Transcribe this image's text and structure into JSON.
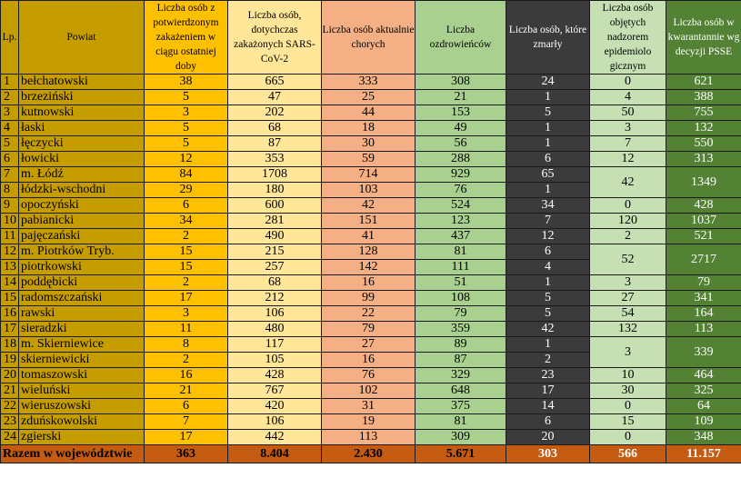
{
  "header": {
    "lp": "Lp.",
    "powiat": "Powiat",
    "new_cases": "Liczba osób z potwierdzonym zakażeniem w ciągu ostatniej doby",
    "total_infected": "Liczba osób, dotychczas zakażonych SARS-CoV-2",
    "currently_ill": "Liczba osób aktualnie chorych",
    "recovered": "Liczba ozdrowieńców",
    "deaths": "Liczba osób, które zmarły",
    "epi_supervision": "Liczba osób objętych nadzorem epidemiolo gicznym",
    "quarantine": "Liczba osób w kwarantannie wg decyzji PSSE"
  },
  "rows": [
    {
      "lp": "1",
      "name": "bełchatowski",
      "new": "38",
      "total": "665",
      "ill": "333",
      "rec": "308",
      "dead": "24",
      "epi": "0",
      "quar": "621"
    },
    {
      "lp": "2",
      "name": "brzeziński",
      "new": "5",
      "total": "47",
      "ill": "25",
      "rec": "21",
      "dead": "1",
      "epi": "4",
      "quar": "388"
    },
    {
      "lp": "3",
      "name": "kutnowski",
      "new": "3",
      "total": "202",
      "ill": "44",
      "rec": "153",
      "dead": "5",
      "epi": "50",
      "quar": "755"
    },
    {
      "lp": "4",
      "name": "łaski",
      "new": "5",
      "total": "68",
      "ill": "18",
      "rec": "49",
      "dead": "1",
      "epi": "3",
      "quar": "132"
    },
    {
      "lp": "5",
      "name": "łęczycki",
      "new": "5",
      "total": "87",
      "ill": "30",
      "rec": "56",
      "dead": "1",
      "epi": "7",
      "quar": "550"
    },
    {
      "lp": "6",
      "name": "łowicki",
      "new": "12",
      "total": "353",
      "ill": "59",
      "rec": "288",
      "dead": "6",
      "epi": "12",
      "quar": "313"
    },
    {
      "lp": "7",
      "name": "m. Łódź",
      "new": "84",
      "total": "1708",
      "ill": "714",
      "rec": "929",
      "dead": "65",
      "epi": "42",
      "quar": "1349"
    },
    {
      "lp": "8",
      "name": "łódzki-wschodni",
      "new": "29",
      "total": "180",
      "ill": "103",
      "rec": "76",
      "dead": "1"
    },
    {
      "lp": "9",
      "name": "opoczyński",
      "new": "6",
      "total": "600",
      "ill": "42",
      "rec": "524",
      "dead": "34",
      "epi": "0",
      "quar": "428"
    },
    {
      "lp": "10",
      "name": "pabianicki",
      "new": "34",
      "total": "281",
      "ill": "151",
      "rec": "123",
      "dead": "7",
      "epi": "120",
      "quar": "1037"
    },
    {
      "lp": "11",
      "name": "pajęczański",
      "new": "2",
      "total": "490",
      "ill": "41",
      "rec": "437",
      "dead": "12",
      "epi": "2",
      "quar": "521"
    },
    {
      "lp": "12",
      "name": "m. Piotrków Tryb.",
      "new": "15",
      "total": "215",
      "ill": "128",
      "rec": "81",
      "dead": "6",
      "epi": "52",
      "quar": "2717"
    },
    {
      "lp": "13",
      "name": "piotrkowski",
      "new": "15",
      "total": "257",
      "ill": "142",
      "rec": "111",
      "dead": "4"
    },
    {
      "lp": "14",
      "name": "poddębicki",
      "new": "2",
      "total": "68",
      "ill": "16",
      "rec": "51",
      "dead": "1",
      "epi": "3",
      "quar": "79"
    },
    {
      "lp": "15",
      "name": "radomszczański",
      "new": "17",
      "total": "212",
      "ill": "99",
      "rec": "108",
      "dead": "5",
      "epi": "27",
      "quar": "341"
    },
    {
      "lp": "16",
      "name": "rawski",
      "new": "3",
      "total": "106",
      "ill": "22",
      "rec": "79",
      "dead": "5",
      "epi": "54",
      "quar": "164"
    },
    {
      "lp": "17",
      "name": "sieradzki",
      "new": "11",
      "total": "480",
      "ill": "79",
      "rec": "359",
      "dead": "42",
      "epi": "132",
      "quar": "113"
    },
    {
      "lp": "18",
      "name": "m. Skierniewice",
      "new": "8",
      "total": "117",
      "ill": "27",
      "rec": "89",
      "dead": "1",
      "epi": "3",
      "quar": "339"
    },
    {
      "lp": "19",
      "name": "skierniewicki",
      "new": "2",
      "total": "105",
      "ill": "16",
      "rec": "87",
      "dead": "2"
    },
    {
      "lp": "20",
      "name": "tomaszowski",
      "new": "16",
      "total": "428",
      "ill": "76",
      "rec": "329",
      "dead": "23",
      "epi": "10",
      "quar": "464"
    },
    {
      "lp": "21",
      "name": "wieluński",
      "new": "21",
      "total": "767",
      "ill": "102",
      "rec": "648",
      "dead": "17",
      "epi": "30",
      "quar": "325"
    },
    {
      "lp": "22",
      "name": "wieruszowski",
      "new": "6",
      "total": "420",
      "ill": "31",
      "rec": "375",
      "dead": "14",
      "epi": "0",
      "quar": "64"
    },
    {
      "lp": "23",
      "name": "zduńskowolski",
      "new": "7",
      "total": "106",
      "ill": "19",
      "rec": "81",
      "dead": "6",
      "epi": "15",
      "quar": "109"
    },
    {
      "lp": "24",
      "name": "zgierski",
      "new": "17",
      "total": "442",
      "ill": "113",
      "rec": "309",
      "dead": "20",
      "epi": "0",
      "quar": "348"
    }
  ],
  "total": {
    "label": "Razem w województwie",
    "new": "363",
    "total": "8.404",
    "ill": "2.430",
    "rec": "5.671",
    "dead": "303",
    "epi": "566",
    "quar": "11.157"
  },
  "colors": {
    "lp_powiat": "#c69d00",
    "new_cases": "#ffc000",
    "total_infected": "#ffe699",
    "currently_ill": "#f4b084",
    "recovered": "#a9d08e",
    "deaths": "#3b3b3b",
    "epi_supervision": "#c6e0b4",
    "quarantine": "#548235",
    "total_row": "#c55a11"
  }
}
